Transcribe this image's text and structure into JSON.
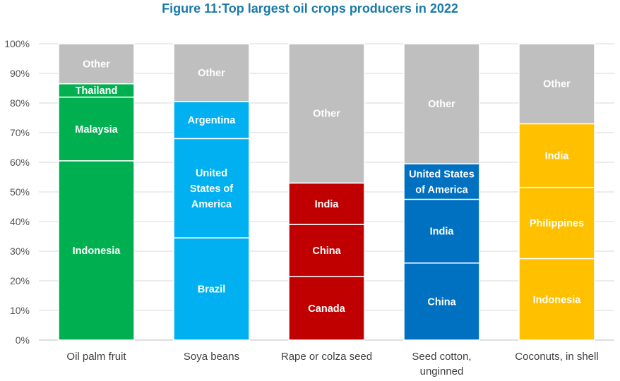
{
  "chart_data": {
    "type": "bar",
    "stacked": true,
    "title": "Figure 11:Top largest oil crops producers in 2022",
    "xlabel": "",
    "ylabel": "",
    "ylim": [
      0,
      100
    ],
    "yticks": [
      "0%",
      "10%",
      "20%",
      "30%",
      "40%",
      "50%",
      "60%",
      "70%",
      "80%",
      "90%",
      "100%"
    ],
    "grid": true,
    "categories": [
      [
        "Oil palm fruit"
      ],
      [
        "Soya beans"
      ],
      [
        "Rape or colza seed"
      ],
      [
        "Seed cotton,",
        "unginned"
      ],
      [
        "Coconuts, in shell"
      ]
    ],
    "bars": [
      {
        "segments": [
          {
            "label": [
              "Indonesia"
            ],
            "value": 60.5,
            "color": "#00b050"
          },
          {
            "label": [
              "Malaysia"
            ],
            "value": 21.5,
            "color": "#00b050"
          },
          {
            "label": [
              "Thailand"
            ],
            "value": 4.5,
            "color": "#00b050"
          },
          {
            "label": [
              "Other"
            ],
            "value": 13.5,
            "color": "#bfbfbf"
          }
        ]
      },
      {
        "segments": [
          {
            "label": [
              "Brazil"
            ],
            "value": 34.5,
            "color": "#00b0f0"
          },
          {
            "label": [
              "United",
              "States of",
              "America"
            ],
            "value": 33.5,
            "color": "#00b0f0"
          },
          {
            "label": [
              "Argentina"
            ],
            "value": 12.5,
            "color": "#00b0f0"
          },
          {
            "label": [
              "Other"
            ],
            "value": 19.5,
            "color": "#bfbfbf"
          }
        ]
      },
      {
        "segments": [
          {
            "label": [
              "Canada"
            ],
            "value": 21.5,
            "color": "#c00000"
          },
          {
            "label": [
              "China"
            ],
            "value": 17.5,
            "color": "#c00000"
          },
          {
            "label": [
              "India"
            ],
            "value": 14,
            "color": "#c00000"
          },
          {
            "label": [
              "Other"
            ],
            "value": 47,
            "color": "#bfbfbf"
          }
        ]
      },
      {
        "segments": [
          {
            "label": [
              "China"
            ],
            "value": 26,
            "color": "#0070c0"
          },
          {
            "label": [
              "India"
            ],
            "value": 21.5,
            "color": "#0070c0"
          },
          {
            "label": [
              "United States",
              "of America"
            ],
            "value": 12,
            "color": "#0070c0"
          },
          {
            "label": [
              "Other"
            ],
            "value": 40.5,
            "color": "#bfbfbf"
          }
        ]
      },
      {
        "segments": [
          {
            "label": [
              "Indonesia"
            ],
            "value": 27.5,
            "color": "#ffc000"
          },
          {
            "label": [
              "Philippines"
            ],
            "value": 24,
            "color": "#ffc000"
          },
          {
            "label": [
              "India"
            ],
            "value": 21.5,
            "color": "#ffc000"
          },
          {
            "label": [
              "Other"
            ],
            "value": 27,
            "color": "#bfbfbf"
          }
        ]
      }
    ]
  }
}
